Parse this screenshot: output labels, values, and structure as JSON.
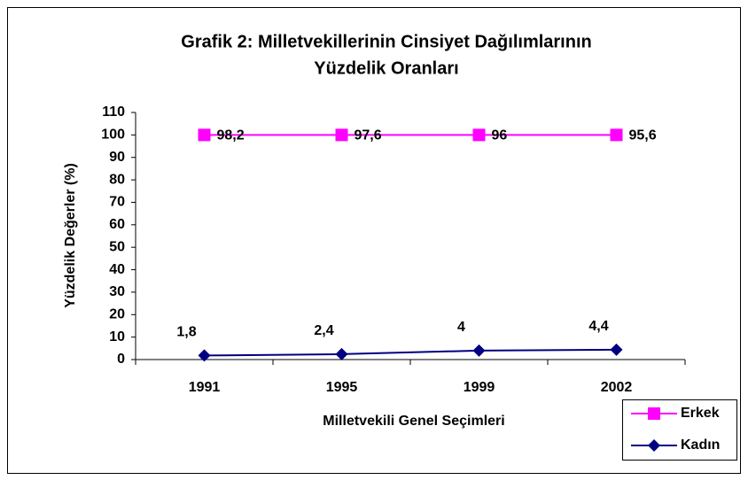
{
  "chart_data": {
    "type": "line",
    "stacked": true,
    "title": [
      "Grafik 2: Milletvekillerinin Cinsiyet Dağılımlarının",
      "Yüzdelik Oranları"
    ],
    "x_label": "Milletvekili Genel Seçimleri",
    "y_label": "Yüzdelik Değerler (%)",
    "categories": [
      "1991",
      "1995",
      "1999",
      "2002"
    ],
    "series": [
      {
        "name": "Erkek",
        "color": "#ff00ff",
        "marker": "square",
        "values": [
          98.2,
          97.6,
          96,
          95.6
        ],
        "value_labels": [
          "98,2",
          "97,6",
          "96",
          "95,6"
        ]
      },
      {
        "name": "Kadın",
        "color": "#000080",
        "marker": "diamond",
        "values": [
          1.8,
          2.4,
          4,
          4.4
        ],
        "value_labels": [
          "1,8",
          "2,4",
          "4",
          "4,4"
        ]
      }
    ],
    "ylim": [
      0,
      110
    ],
    "yticks": [
      0,
      10,
      20,
      30,
      40,
      50,
      60,
      70,
      80,
      90,
      100,
      110
    ],
    "legend": "lower right",
    "grid": false
  }
}
